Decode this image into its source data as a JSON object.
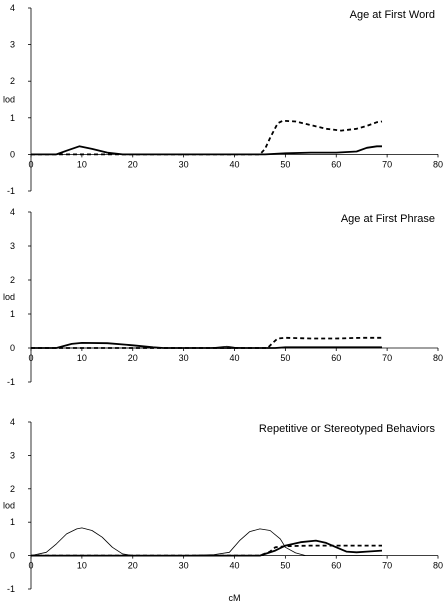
{
  "chart_data": [
    {
      "type": "line",
      "title": "Age at First Word",
      "xlabel": "",
      "ylabel": "lod",
      "xlim": [
        0,
        80
      ],
      "ylim": [
        -1,
        4
      ],
      "x_ticks": [
        0,
        10,
        20,
        30,
        40,
        50,
        60,
        70,
        80
      ],
      "y_ticks": [
        -1,
        0,
        1,
        2,
        3,
        4
      ],
      "grid": false,
      "series": [
        {
          "style": "solid-thick",
          "points": [
            [
              0,
              0
            ],
            [
              5,
              0
            ],
            [
              7,
              0.1
            ],
            [
              9.5,
              0.22
            ],
            [
              12,
              0.15
            ],
            [
              15,
              0.05
            ],
            [
              18,
              0
            ],
            [
              30,
              0
            ],
            [
              46,
              0
            ],
            [
              50,
              0.03
            ],
            [
              55,
              0.05
            ],
            [
              60,
              0.05
            ],
            [
              64,
              0.08
            ],
            [
              66,
              0.18
            ],
            [
              68,
              0.22
            ],
            [
              69,
              0.22
            ]
          ]
        },
        {
          "style": "dashed-thick",
          "points": [
            [
              0,
              0
            ],
            [
              45,
              0
            ],
            [
              46,
              0.15
            ],
            [
              47,
              0.45
            ],
            [
              48.5,
              0.85
            ],
            [
              49.5,
              0.92
            ],
            [
              52,
              0.9
            ],
            [
              55,
              0.8
            ],
            [
              58,
              0.7
            ],
            [
              61,
              0.65
            ],
            [
              64,
              0.7
            ],
            [
              66,
              0.78
            ],
            [
              68,
              0.88
            ],
            [
              69,
              0.9
            ]
          ]
        }
      ]
    },
    {
      "type": "line",
      "title": "Age at First Phrase",
      "xlabel": "",
      "ylabel": "lod",
      "xlim": [
        0,
        80
      ],
      "ylim": [
        -1,
        4
      ],
      "x_ticks": [
        0,
        10,
        20,
        30,
        40,
        50,
        60,
        70,
        80
      ],
      "y_ticks": [
        -1,
        0,
        1,
        2,
        3,
        4
      ],
      "grid": false,
      "series": [
        {
          "style": "solid-thick",
          "points": [
            [
              0,
              0
            ],
            [
              5,
              0
            ],
            [
              8,
              0.12
            ],
            [
              10,
              0.15
            ],
            [
              15,
              0.14
            ],
            [
              20,
              0.08
            ],
            [
              24,
              0.02
            ],
            [
              26,
              0
            ],
            [
              48,
              0
            ],
            [
              50,
              0.02
            ],
            [
              60,
              0.02
            ],
            [
              66,
              0.02
            ],
            [
              69,
              0.02
            ]
          ]
        },
        {
          "style": "dashed-thick",
          "points": [
            [
              0,
              0
            ],
            [
              46.5,
              0
            ],
            [
              47.5,
              0.15
            ],
            [
              48.5,
              0.28
            ],
            [
              50,
              0.3
            ],
            [
              55,
              0.28
            ],
            [
              60,
              0.28
            ],
            [
              65,
              0.3
            ],
            [
              69,
              0.3
            ]
          ]
        },
        {
          "style": "solid-thin",
          "points": [
            [
              0,
              0
            ],
            [
              35,
              0
            ],
            [
              37,
              0.03
            ],
            [
              38.5,
              0.05
            ],
            [
              40,
              0.02
            ],
            [
              42,
              0
            ],
            [
              69,
              0
            ]
          ]
        }
      ]
    },
    {
      "type": "line",
      "title": "Repetitive or Stereotyped Behaviors",
      "xlabel": "cM",
      "ylabel": "lod",
      "xlim": [
        0,
        80
      ],
      "ylim": [
        -1,
        4
      ],
      "x_ticks": [
        0,
        10,
        20,
        30,
        40,
        50,
        60,
        70,
        80
      ],
      "y_ticks": [
        -1,
        0,
        1,
        2,
        3,
        4
      ],
      "grid": false,
      "series": [
        {
          "style": "solid-thin",
          "points": [
            [
              0,
              0
            ],
            [
              3,
              0.1
            ],
            [
              5,
              0.35
            ],
            [
              7,
              0.65
            ],
            [
              9,
              0.8
            ],
            [
              10,
              0.83
            ],
            [
              12,
              0.75
            ],
            [
              14,
              0.55
            ],
            [
              16,
              0.25
            ],
            [
              18,
              0.05
            ],
            [
              20,
              0
            ],
            [
              30,
              0
            ],
            [
              36,
              0.03
            ],
            [
              39,
              0.1
            ],
            [
              41,
              0.45
            ],
            [
              43,
              0.72
            ],
            [
              45,
              0.8
            ],
            [
              47,
              0.75
            ],
            [
              49,
              0.5
            ],
            [
              50,
              0.25
            ],
            [
              52,
              0.08
            ],
            [
              54,
              0
            ],
            [
              69,
              0
            ]
          ]
        },
        {
          "style": "solid-thick",
          "points": [
            [
              0,
              0
            ],
            [
              45,
              0
            ],
            [
              48,
              0.15
            ],
            [
              50,
              0.3
            ],
            [
              53,
              0.4
            ],
            [
              56,
              0.45
            ],
            [
              58,
              0.38
            ],
            [
              60,
              0.25
            ],
            [
              62,
              0.12
            ],
            [
              64,
              0.1
            ],
            [
              66,
              0.12
            ],
            [
              69,
              0.15
            ]
          ]
        },
        {
          "style": "dashed-thick",
          "points": [
            [
              0,
              0
            ],
            [
              45,
              0
            ],
            [
              47,
              0.12
            ],
            [
              48,
              0.25
            ],
            [
              50,
              0.28
            ],
            [
              55,
              0.3
            ],
            [
              60,
              0.3
            ],
            [
              65,
              0.3
            ],
            [
              69,
              0.3
            ]
          ]
        }
      ]
    }
  ]
}
